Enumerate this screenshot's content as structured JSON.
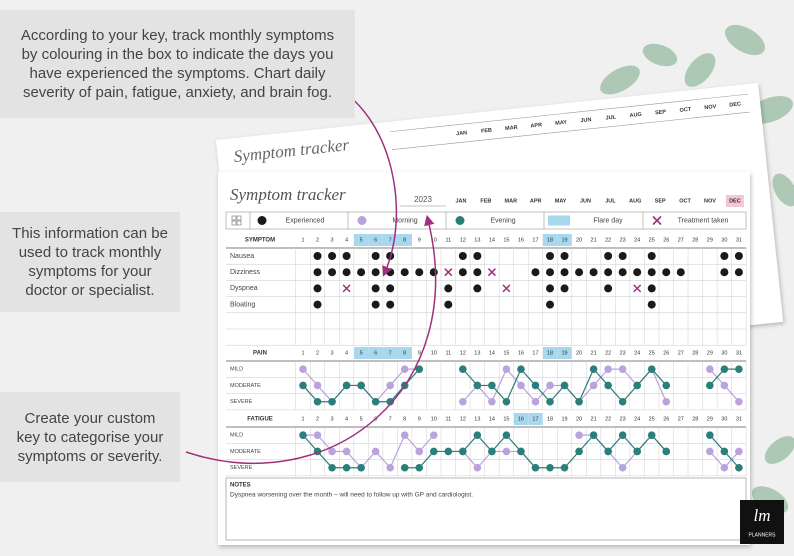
{
  "callouts": [
    "According to your key, track monthly symptoms by colouring in the box to indicate the days you have experienced the symptoms. Chart daily severity of pain, fatigue, anxiety, and brain fog.",
    "This information can be used to track monthly symptoms for your doctor or specialist.",
    "Create your custom key to categorise your symptoms or severity."
  ],
  "tracker": {
    "title": "Symptom tracker",
    "year": "2023",
    "months": [
      "JAN",
      "FEB",
      "MAR",
      "APR",
      "MAY",
      "JUN",
      "JUL",
      "AUG",
      "SEP",
      "OCT",
      "NOV",
      "DEC"
    ],
    "highlight_month": "DEC",
    "legend": [
      {
        "label": "Experienced",
        "kind": "dot",
        "color": "#1a1a1a"
      },
      {
        "label": "Morning",
        "kind": "dot",
        "color": "#b9a3dc"
      },
      {
        "label": "Evening",
        "kind": "dot",
        "color": "#2b7f7b"
      },
      {
        "label": "Flare day",
        "kind": "box",
        "color": "#a8d8ee"
      },
      {
        "label": "Treatment taken",
        "kind": "cross",
        "color": "#a0307f"
      }
    ],
    "days": [
      1,
      2,
      3,
      4,
      5,
      6,
      7,
      8,
      9,
      10,
      11,
      12,
      13,
      14,
      15,
      16,
      17,
      18,
      19,
      20,
      21,
      22,
      23,
      24,
      25,
      26,
      27,
      28,
      29,
      30,
      31
    ],
    "symptoms": {
      "heading": "SYMPTOM",
      "flare_days": [
        5,
        6,
        7,
        8,
        18,
        19
      ],
      "rows": [
        {
          "label": "Nausea",
          "experienced": [
            2,
            3,
            4,
            6,
            7,
            12,
            13,
            18,
            19,
            22,
            23,
            25,
            30,
            31
          ],
          "treatment": []
        },
        {
          "label": "Dizziness",
          "experienced": [
            2,
            3,
            4,
            5,
            6,
            7,
            8,
            9,
            10,
            12,
            13,
            17,
            18,
            19,
            20,
            21,
            22,
            23,
            24,
            25,
            26,
            27,
            30,
            31
          ],
          "treatment": [
            11,
            14
          ]
        },
        {
          "label": "Dyspnea",
          "experienced": [
            2,
            6,
            7,
            11,
            13,
            18,
            19,
            22,
            25
          ],
          "treatment": [
            4,
            15,
            24
          ]
        },
        {
          "label": "Bloating",
          "experienced": [
            2,
            6,
            7,
            11,
            18,
            25
          ],
          "treatment": []
        }
      ]
    },
    "pain": {
      "heading": "PAIN",
      "flare_days": [
        5,
        6,
        7,
        8,
        18,
        19
      ],
      "levels": [
        "MILD",
        "MODERATE",
        "SEVERE"
      ],
      "morning": [
        1,
        2,
        3,
        2,
        2,
        3,
        2,
        1,
        1,
        null,
        null,
        3,
        2,
        3,
        1,
        2,
        3,
        2,
        2,
        3,
        2,
        1,
        1,
        2,
        1,
        3,
        null,
        null,
        1,
        2,
        3
      ],
      "evening": [
        2,
        3,
        3,
        2,
        2,
        3,
        3,
        2,
        1,
        null,
        null,
        1,
        2,
        2,
        3,
        1,
        2,
        3,
        2,
        3,
        1,
        2,
        3,
        2,
        1,
        2,
        null,
        null,
        2,
        1,
        1
      ]
    },
    "fatigue": {
      "heading": "FATIGUE",
      "flare_days": [
        16,
        17
      ],
      "levels": [
        "MILD",
        "MODERATE",
        "SEVERE"
      ],
      "morning": [
        1,
        1,
        2,
        2,
        3,
        2,
        3,
        1,
        2,
        1,
        null,
        2,
        3,
        2,
        2,
        2,
        3,
        null,
        null,
        1,
        1,
        2,
        3,
        2,
        1,
        2,
        null,
        null,
        2,
        3,
        2
      ],
      "evening": [
        1,
        2,
        3,
        3,
        3,
        null,
        null,
        3,
        3,
        2,
        2,
        2,
        1,
        2,
        1,
        2,
        3,
        3,
        3,
        2,
        1,
        2,
        1,
        2,
        1,
        2,
        null,
        null,
        1,
        2,
        3
      ]
    },
    "notes": {
      "heading": "NOTES",
      "text": "Dyspnea worsening over the month – will need to follow up with GP and cardiologist."
    },
    "logo": {
      "mark": "lm",
      "text": "PLANNERS"
    }
  }
}
